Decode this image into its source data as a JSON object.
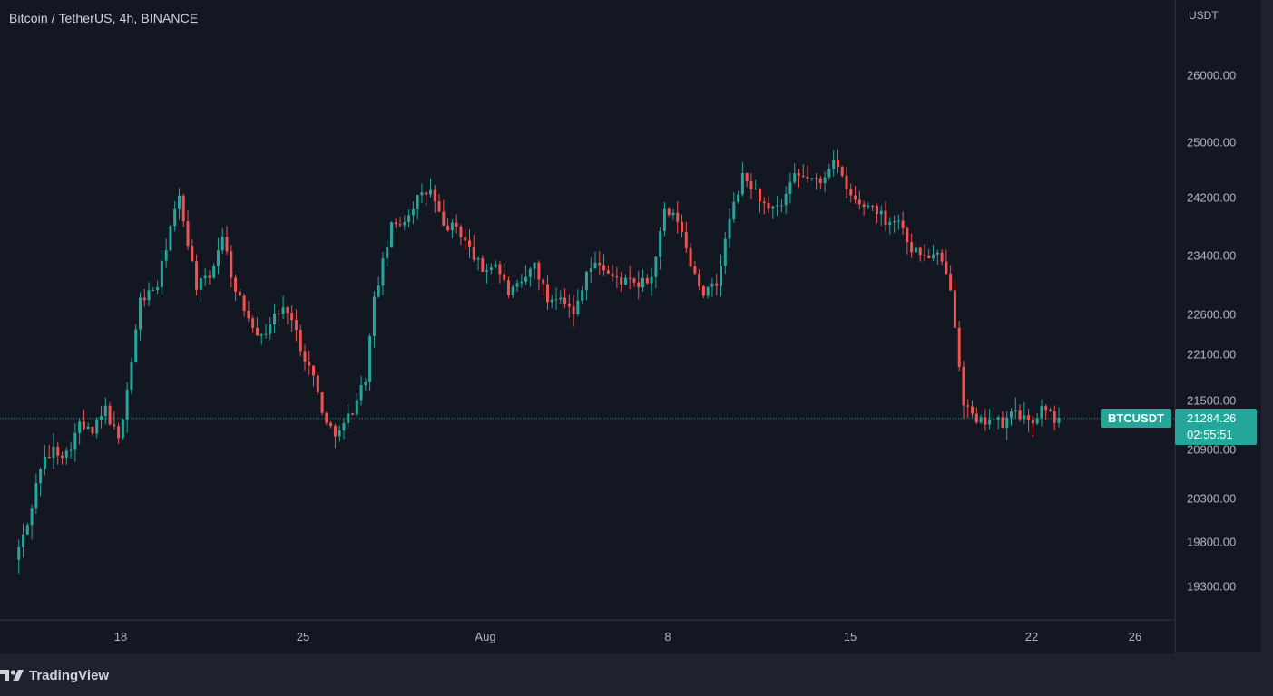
{
  "legend": {
    "title": "Bitcoin / TetherUS, 4h, BINANCE"
  },
  "price_scale": {
    "currency": "USDT",
    "ticks": [
      "26000.00",
      "25000.00",
      "24200.00",
      "23400.00",
      "22600.00",
      "22100.00",
      "21500.00",
      "20900.00",
      "20300.00",
      "19800.00",
      "19300.00"
    ]
  },
  "time_scale": {
    "ticks": [
      "18",
      "25",
      "Aug",
      "8",
      "15",
      "22",
      "26"
    ]
  },
  "last_price": {
    "symbol": "BTCUSDT",
    "value": "21284.26",
    "countdown": "02:55:51"
  },
  "brand": {
    "name": "TradingView",
    "icon": "tradingview-logo-icon"
  },
  "colors": {
    "up": "#26a69a",
    "down": "#ef5350",
    "background": "#131722",
    "text": "#b2b5be"
  },
  "chart_data": {
    "type": "candlestick",
    "title": "Bitcoin / TetherUS, 4h, BINANCE",
    "symbol": "BTCUSDT",
    "interval": "4h",
    "exchange": "BINANCE",
    "ylabel": "USDT",
    "ylim": [
      18900,
      26700
    ],
    "y_ticks": [
      19300,
      19800,
      20300,
      20900,
      21500,
      22100,
      22600,
      23400,
      24200,
      25000,
      26000
    ],
    "x_ticks": [
      "18",
      "25",
      "Aug",
      "8",
      "15",
      "22",
      "26"
    ],
    "grid": false,
    "last_price": 21284.26,
    "anchors": [
      [
        "07-14 00",
        19600
      ],
      [
        "07-14 12",
        20000
      ],
      [
        "07-15 00",
        20700
      ],
      [
        "07-15 12",
        20900
      ],
      [
        "07-16 00",
        20850
      ],
      [
        "07-16 12",
        21200
      ],
      [
        "07-17 00",
        21100
      ],
      [
        "07-17 12",
        21400
      ],
      [
        "07-18 00",
        21000
      ],
      [
        "07-18 12",
        22000
      ],
      [
        "07-18 20",
        22800
      ],
      [
        "07-19 12",
        23000
      ],
      [
        "07-20 00",
        23800
      ],
      [
        "07-20 08",
        24200
      ],
      [
        "07-20 16",
        23600
      ],
      [
        "07-21 00",
        23000
      ],
      [
        "07-21 12",
        23100
      ],
      [
        "07-22 00",
        23700
      ],
      [
        "07-22 12",
        22900
      ],
      [
        "07-23 00",
        22600
      ],
      [
        "07-23 12",
        22300
      ],
      [
        "07-24 00",
        22600
      ],
      [
        "07-24 12",
        22700
      ],
      [
        "07-25 00",
        22200
      ],
      [
        "07-25 12",
        21800
      ],
      [
        "07-26 00",
        21200
      ],
      [
        "07-26 12",
        21100
      ],
      [
        "07-27 00",
        21400
      ],
      [
        "07-27 12",
        21800
      ],
      [
        "07-27 20",
        22800
      ],
      [
        "07-28 12",
        23800
      ],
      [
        "07-29 00",
        23900
      ],
      [
        "07-29 12",
        24200
      ],
      [
        "07-30 00",
        24300
      ],
      [
        "07-30 12",
        23800
      ],
      [
        "07-31 00",
        23800
      ],
      [
        "08-01 00",
        23200
      ],
      [
        "08-01 12",
        23300
      ],
      [
        "08-02 00",
        22900
      ],
      [
        "08-02 12",
        23000
      ],
      [
        "08-03 00",
        23300
      ],
      [
        "08-03 12",
        22800
      ],
      [
        "08-04 00",
        22900
      ],
      [
        "08-04 12",
        22600
      ],
      [
        "08-05 00",
        23200
      ],
      [
        "08-05 12",
        23300
      ],
      [
        "08-06 00",
        23100
      ],
      [
        "08-07 00",
        23000
      ],
      [
        "08-07 12",
        23100
      ],
      [
        "08-08 00",
        24000
      ],
      [
        "08-08 12",
        23900
      ],
      [
        "08-09 00",
        23300
      ],
      [
        "08-09 12",
        22900
      ],
      [
        "08-10 00",
        23000
      ],
      [
        "08-10 12",
        23900
      ],
      [
        "08-11 00",
        24500
      ],
      [
        "08-11 12",
        24300
      ],
      [
        "08-12 00",
        24000
      ],
      [
        "08-12 12",
        24100
      ],
      [
        "08-13 00",
        24500
      ],
      [
        "08-13 12",
        24500
      ],
      [
        "08-14 00",
        24400
      ],
      [
        "08-14 12",
        24800
      ],
      [
        "08-15 00",
        24300
      ],
      [
        "08-15 12",
        24100
      ],
      [
        "08-16 00",
        24100
      ],
      [
        "08-16 12",
        23900
      ],
      [
        "08-17 00",
        23900
      ],
      [
        "08-17 12",
        23500
      ],
      [
        "08-18 00",
        23400
      ],
      [
        "08-18 12",
        23400
      ],
      [
        "08-19 00",
        23000
      ],
      [
        "08-19 12",
        21500
      ],
      [
        "08-20 00",
        21200
      ],
      [
        "08-20 12",
        21300
      ],
      [
        "08-21 00",
        21200
      ],
      [
        "08-21 12",
        21400
      ],
      [
        "08-22 00",
        21200
      ],
      [
        "08-22 12",
        21400
      ],
      [
        "08-23 00",
        21284
      ]
    ]
  }
}
